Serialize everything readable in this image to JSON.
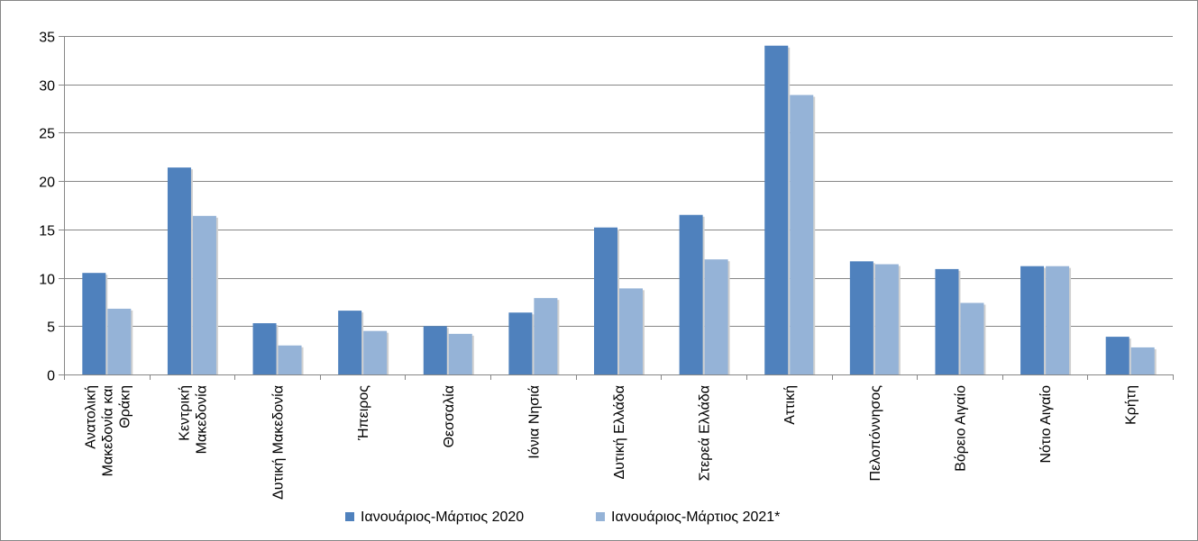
{
  "chart_data": {
    "type": "bar",
    "categories": [
      [
        "Ανατολική",
        "Μακεδονία και",
        "Θράκη"
      ],
      [
        "Κεντρική",
        "Μακεδονία"
      ],
      [
        "Δυτική Μακεδονία"
      ],
      [
        "Ήπειρος"
      ],
      [
        "Θεσσαλία"
      ],
      [
        "Ιόνια Νησιά"
      ],
      [
        "Δυτική Ελλάδα"
      ],
      [
        "Στερεά Ελλάδα"
      ],
      [
        "Αττική"
      ],
      [
        "Πελοπόννησος"
      ],
      [
        "Βόρειο Αιγαίο"
      ],
      [
        "Νότιο Αιγαίο"
      ],
      [
        "Κρήτη"
      ]
    ],
    "series": [
      {
        "name": "Ιανουάριος-Μάρτιος 2020",
        "color": "#4F81BD",
        "values": [
          10.5,
          21.4,
          5.3,
          6.6,
          5.0,
          6.4,
          15.2,
          16.5,
          34.0,
          11.7,
          10.9,
          11.2,
          3.9
        ]
      },
      {
        "name": "Ιανουάριος-Μάρτιος 2021*",
        "color": "#95B3D7",
        "values": [
          6.8,
          16.4,
          3.0,
          4.5,
          4.2,
          7.9,
          8.9,
          11.9,
          28.9,
          11.4,
          7.4,
          11.2,
          2.8
        ]
      }
    ],
    "ylim": [
      0,
      35
    ],
    "yticks": [
      0,
      5,
      10,
      15,
      20,
      25,
      30,
      35
    ],
    "grid": true,
    "legend": "bottom",
    "title": "",
    "xlabel": "",
    "ylabel": ""
  }
}
